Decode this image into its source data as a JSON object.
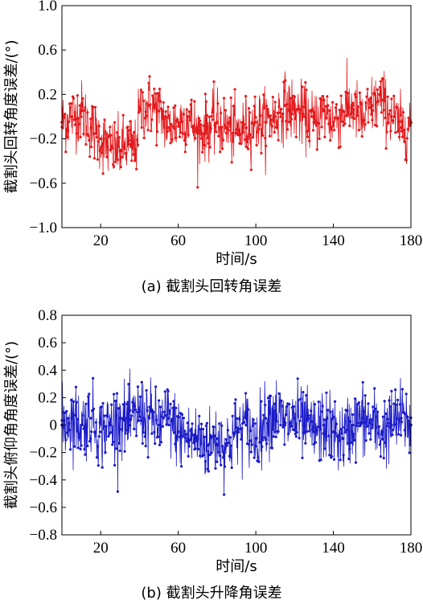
{
  "chart_data": [
    {
      "type": "line",
      "ylabel": "截割头回转角度误差/(°)",
      "xlabel": "时间/s",
      "caption": "(a)  截割头回转角误差",
      "x_ticks": [
        20,
        60,
        100,
        140,
        180
      ],
      "y_ticks": [
        1.0,
        0.6,
        0.2,
        -0.2,
        -0.6,
        -1.0
      ],
      "y_tick_labels": [
        "1.0",
        "0.6",
        "0.2",
        "−0.2",
        "−0.6",
        "−1.0"
      ],
      "xlim": [
        0,
        180
      ],
      "ylim": [
        -1.0,
        1.0
      ],
      "grid": false,
      "series": [
        {
          "color": "#e3191c",
          "x": [
            0,
            5,
            10,
            15,
            20,
            25,
            30,
            35,
            38,
            40,
            45,
            50,
            55,
            60,
            65,
            70,
            75,
            80,
            85,
            90,
            95,
            100,
            105,
            110,
            115,
            120,
            125,
            130,
            135,
            140,
            145,
            150,
            155,
            160,
            165,
            170,
            175,
            180
          ],
          "values": [
            -0.05,
            0.0,
            0.05,
            -0.1,
            -0.2,
            -0.3,
            -0.3,
            -0.25,
            -0.3,
            0.05,
            0.1,
            0.05,
            -0.1,
            -0.05,
            0.0,
            -0.15,
            -0.1,
            -0.05,
            -0.1,
            -0.15,
            -0.1,
            -0.05,
            -0.05,
            0.0,
            0.1,
            0.05,
            0.0,
            -0.05,
            0.05,
            -0.05,
            0.05,
            0.1,
            -0.05,
            0.1,
            0.15,
            0.0,
            -0.1,
            -0.05
          ]
        }
      ]
    },
    {
      "type": "line",
      "ylabel": "截割头俯仰角角度误差/(°)",
      "xlabel": "时间/s",
      "caption": "(b)  截割头升降角误差",
      "x_ticks": [
        20,
        60,
        100,
        140,
        180
      ],
      "y_ticks": [
        0.8,
        0.6,
        0.4,
        0.2,
        0,
        -0.2,
        -0.4,
        -0.6,
        -0.8
      ],
      "y_tick_labels": [
        "0.8",
        "0.6",
        "0.4",
        "0.2",
        "0",
        "−0.2",
        "−0.4",
        "−0.6",
        "−0.8"
      ],
      "xlim": [
        0,
        180
      ],
      "ylim": [
        -0.8,
        0.8
      ],
      "grid": false,
      "series": [
        {
          "color": "#1a1ac8",
          "x": [
            0,
            5,
            10,
            15,
            20,
            25,
            30,
            35,
            40,
            45,
            50,
            55,
            60,
            65,
            70,
            75,
            80,
            85,
            90,
            95,
            100,
            105,
            110,
            115,
            120,
            125,
            130,
            135,
            140,
            145,
            150,
            155,
            160,
            165,
            170,
            175,
            180
          ],
          "values": [
            0.0,
            0.05,
            0.0,
            0.05,
            -0.05,
            0.0,
            0.05,
            0.0,
            0.1,
            0.05,
            0.0,
            0.05,
            -0.05,
            -0.1,
            -0.1,
            -0.15,
            -0.1,
            -0.15,
            -0.05,
            0.0,
            -0.1,
            0.05,
            0.1,
            0.0,
            0.05,
            0.0,
            -0.05,
            0.0,
            -0.05,
            -0.1,
            0.0,
            0.05,
            0.0,
            -0.05,
            0.0,
            0.05,
            0.0
          ]
        }
      ]
    }
  ]
}
